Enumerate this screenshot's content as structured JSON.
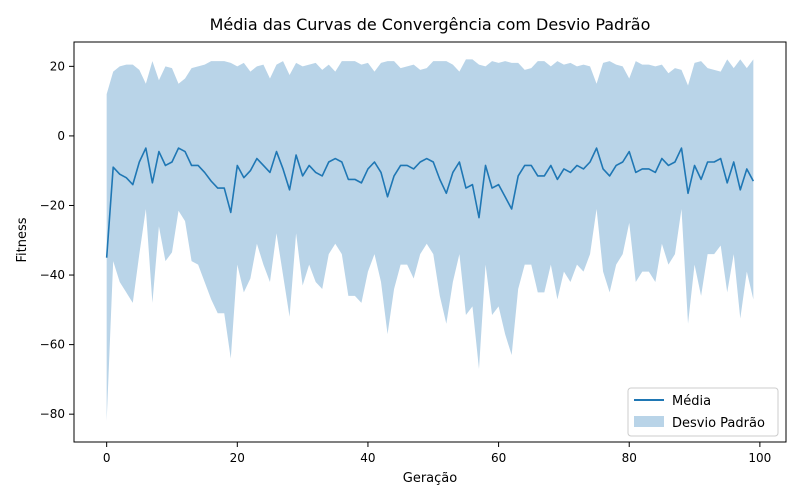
{
  "chart_data": {
    "type": "line",
    "title": "Média das Curvas de Convergência com Desvio Padrão",
    "xlabel": "Geração",
    "ylabel": "Fitness",
    "xlim": [
      -5,
      104
    ],
    "ylim": [
      -88,
      27
    ],
    "xticks": [
      0,
      20,
      40,
      60,
      80,
      100
    ],
    "yticks": [
      -80,
      -60,
      -40,
      -20,
      0,
      20
    ],
    "grid": false,
    "legend_position": "bottom-right",
    "colors": {
      "line": "#1f77b4",
      "band": "#b9d4e8"
    },
    "x": [
      0,
      1,
      2,
      3,
      4,
      5,
      6,
      7,
      8,
      9,
      10,
      11,
      12,
      13,
      14,
      15,
      16,
      17,
      18,
      19,
      20,
      21,
      22,
      23,
      24,
      25,
      26,
      27,
      28,
      29,
      30,
      31,
      32,
      33,
      34,
      35,
      36,
      37,
      38,
      39,
      40,
      41,
      42,
      43,
      44,
      45,
      46,
      47,
      48,
      49,
      50,
      51,
      52,
      53,
      54,
      55,
      56,
      57,
      58,
      59,
      60,
      61,
      62,
      63,
      64,
      65,
      66,
      67,
      68,
      69,
      70,
      71,
      72,
      73,
      74,
      75,
      76,
      77,
      78,
      79,
      80,
      81,
      82,
      83,
      84,
      85,
      86,
      87,
      88,
      89,
      90,
      91,
      92,
      93,
      94,
      95,
      96,
      97,
      98,
      99
    ],
    "series": [
      {
        "name": "Média",
        "values": [
          -35,
          -9,
          -11,
          -12,
          -14,
          -7.5,
          -3.5,
          -13.5,
          -4.5,
          -8.5,
          -7.5,
          -3.5,
          -4.5,
          -8.5,
          -8.5,
          -10.5,
          -13,
          -15,
          -15,
          -22,
          -8.5,
          -12,
          -10,
          -6.5,
          -8.5,
          -10.5,
          -4.5,
          -9.5,
          -15.5,
          -5.5,
          -11.5,
          -8.5,
          -10.5,
          -11.5,
          -7.5,
          -6.5,
          -7.5,
          -12.5,
          -12.5,
          -13.5,
          -9.5,
          -7.5,
          -10.5,
          -17.5,
          -11.5,
          -8.5,
          -8.5,
          -9.5,
          -7.5,
          -6.5,
          -7.5,
          -12.5,
          -16.5,
          -10.5,
          -7.5,
          -15,
          -14,
          -23.5,
          -8.5,
          -15,
          -14,
          -17.5,
          -21,
          -11.5,
          -8.5,
          -8.5,
          -11.5,
          -11.5,
          -8.5,
          -12.5,
          -9.5,
          -10.5,
          -8.5,
          -9.5,
          -7.5,
          -3.5,
          -9.5,
          -11.5,
          -8.5,
          -7.5,
          -4.5,
          -10.5,
          -9.5,
          -9.5,
          -10.5,
          -6.5,
          -8.5,
          -7.5,
          -3.5,
          -16.5,
          -8.5,
          -12.5,
          -7.5,
          -7.5,
          -6.5,
          -13.5,
          -7.5,
          -15.5,
          -9.5,
          -13
        ]
      },
      {
        "name": "Desvio Padrão",
        "type": "area",
        "upper": [
          12,
          18.5,
          20,
          20.5,
          20.5,
          19,
          15,
          21.5,
          16,
          20,
          19.5,
          15,
          16.5,
          19.5,
          20,
          20.5,
          21.5,
          21.5,
          21.5,
          21,
          20,
          21,
          18.5,
          20,
          20.5,
          16.5,
          20.5,
          21.5,
          17.5,
          21,
          20,
          20.5,
          21,
          19,
          20.5,
          18.5,
          21.5,
          21.5,
          21.5,
          20.5,
          21,
          18.5,
          21,
          21.5,
          21.5,
          19.5,
          20,
          20.5,
          19,
          19.5,
          21.5,
          21.5,
          21.5,
          20.5,
          18.5,
          22,
          22,
          20.5,
          20,
          21.5,
          21,
          21.5,
          21,
          21,
          19,
          19.5,
          21.5,
          21.5,
          20,
          21.5,
          20.5,
          21,
          20,
          20.5,
          20,
          15,
          21,
          21.5,
          20.5,
          20,
          16.5,
          21.5,
          20.5,
          20.5,
          20,
          20.5,
          18,
          19.5,
          19,
          14.5,
          21,
          21.5,
          19.5,
          19,
          18.5,
          22,
          19.5,
          22,
          19.5,
          22
        ],
        "lower": [
          -82,
          -36,
          -42,
          -45,
          -48,
          -34,
          -21,
          -48,
          -26,
          -36,
          -33.5,
          -21.5,
          -24.5,
          -36,
          -37,
          -42,
          -47,
          -51,
          -51,
          -64,
          -37,
          -45,
          -41,
          -31,
          -37,
          -42,
          -28,
          -40,
          -52,
          -28,
          -43,
          -37,
          -42,
          -44,
          -34,
          -31,
          -34,
          -46,
          -46,
          -48,
          -39,
          -34,
          -42,
          -57,
          -44,
          -37,
          -37,
          -41,
          -34,
          -31,
          -34,
          -46,
          -54,
          -42,
          -34,
          -51.5,
          -49,
          -67,
          -37,
          -51.5,
          -49,
          -57,
          -63,
          -44,
          -37,
          -37,
          -45,
          -45,
          -37,
          -47,
          -39,
          -42,
          -37,
          -39,
          -34,
          -21,
          -39,
          -45,
          -37,
          -34,
          -25,
          -42,
          -39,
          -39,
          -42,
          -31,
          -37,
          -34,
          -21,
          -54,
          -37,
          -46,
          -34,
          -34,
          -31.5,
          -45,
          -34,
          -52.5,
          -39,
          -47
        ]
      }
    ]
  }
}
